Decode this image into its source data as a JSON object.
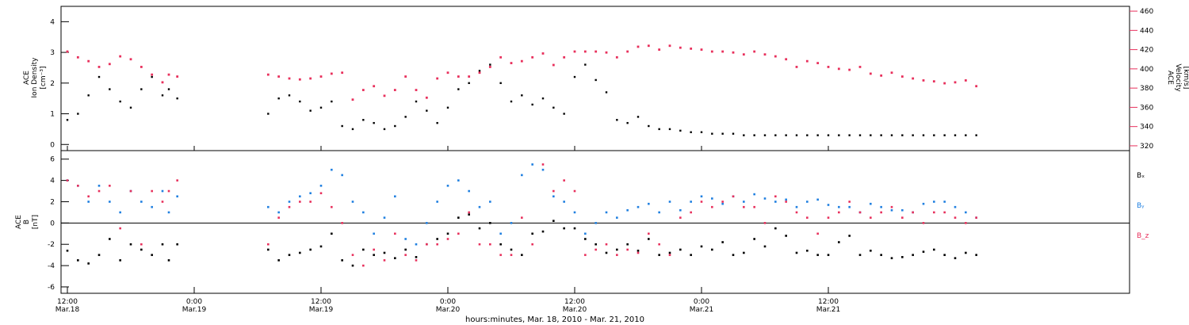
{
  "chart_data": [
    {
      "type": "scatter",
      "panel": "density-velocity",
      "ylabel": [
        "ACE",
        "Ion Density",
        "[cm⁻³]"
      ],
      "ylabel_right": [
        "ACE",
        "Velocity",
        "[km/s]"
      ],
      "ylim": [
        -0.2,
        4.5
      ],
      "yticks": [
        "0",
        "1",
        "2",
        "3",
        "4"
      ],
      "ylim_right": [
        315,
        465
      ],
      "yticks_right": [
        "320",
        "340",
        "360",
        "380",
        "400",
        "420",
        "440",
        "460"
      ],
      "colors": {
        "density": "#000000",
        "velocity": "#e8305c"
      },
      "series": [
        {
          "name": "Ion Density",
          "axis": "left",
          "x_hours": [
            0,
            1,
            2,
            3,
            4,
            5,
            6,
            7,
            8,
            9,
            9.6,
            10.4,
            19,
            20,
            21,
            22,
            23,
            24,
            25,
            26,
            27,
            28,
            29,
            30,
            31,
            32,
            33,
            34,
            35,
            36,
            37,
            38,
            39,
            40,
            41,
            42,
            43,
            44,
            45,
            46,
            47,
            48,
            49,
            50,
            51,
            52,
            53,
            54,
            55,
            56,
            57,
            58,
            59,
            60,
            61,
            62,
            63,
            64,
            65,
            66,
            67,
            68,
            69,
            70,
            71,
            72,
            73,
            74,
            75,
            76,
            77,
            78,
            79,
            80,
            81,
            82,
            83,
            84,
            85,
            86
          ],
          "values": [
            0.8,
            1.0,
            1.6,
            2.2,
            1.8,
            1.4,
            1.2,
            1.8,
            2.2,
            1.6,
            1.8,
            1.5,
            1.0,
            1.5,
            1.6,
            1.4,
            1.1,
            1.2,
            1.4,
            0.6,
            0.5,
            0.8,
            0.7,
            0.5,
            0.6,
            0.9,
            1.4,
            1.1,
            0.7,
            1.2,
            1.8,
            2.0,
            2.4,
            2.6,
            2.0,
            1.4,
            1.6,
            1.3,
            1.5,
            1.2,
            1.0,
            2.2,
            2.6,
            2.1,
            1.7,
            0.8,
            0.7,
            0.9,
            0.6,
            0.5,
            0.5,
            0.45,
            0.4,
            0.4,
            0.35,
            0.35,
            0.35,
            0.3,
            0.3,
            0.3,
            0.3,
            0.3,
            0.3,
            0.3,
            0.3,
            0.3,
            0.3,
            0.3,
            0.3,
            0.3,
            0.3,
            0.3,
            0.3,
            0.3,
            0.3,
            0.3,
            0.3,
            0.3,
            0.3,
            0.3
          ]
        },
        {
          "name": "Velocity",
          "axis": "right",
          "x_hours": [
            0,
            1,
            2,
            3,
            4,
            5,
            6,
            7,
            8,
            9,
            9.6,
            10.4,
            19,
            20,
            21,
            22,
            23,
            24,
            25,
            26,
            27,
            28,
            29,
            30,
            31,
            32,
            33,
            34,
            35,
            36,
            37,
            38,
            39,
            40,
            41,
            42,
            43,
            44,
            45,
            46,
            47,
            48,
            49,
            50,
            51,
            52,
            53,
            54,
            55,
            56,
            57,
            58,
            59,
            60,
            61,
            62,
            63,
            64,
            65,
            66,
            67,
            68,
            69,
            70,
            71,
            72,
            73,
            74,
            75,
            76,
            77,
            78,
            79,
            80,
            81,
            82,
            83,
            84,
            85,
            86
          ],
          "values": [
            418,
            412,
            408,
            402,
            405,
            413,
            410,
            402,
            394,
            386,
            394,
            392,
            394,
            392,
            390,
            389,
            390,
            392,
            395,
            396,
            368,
            378,
            382,
            372,
            378,
            392,
            378,
            370,
            390,
            396,
            392,
            392,
            396,
            402,
            412,
            406,
            408,
            412,
            416,
            404,
            412,
            418,
            418,
            418,
            417,
            412,
            418,
            423,
            424,
            420,
            424,
            422,
            421,
            420,
            418,
            418,
            417,
            415,
            418,
            415,
            413,
            410,
            402,
            408,
            406,
            402,
            400,
            399,
            402,
            395,
            393,
            396,
            392,
            390,
            388,
            387,
            385,
            386,
            388,
            382
          ]
        }
      ]
    },
    {
      "type": "scatter",
      "panel": "imf",
      "ylabel": [
        "ACE",
        "B",
        "[nT]"
      ],
      "ylim": [
        -6.6,
        6.8
      ],
      "yticks": [
        "-6",
        "-4",
        "-2",
        "0",
        "2",
        "4",
        "6"
      ],
      "legend": [
        "Bₓ",
        "Bᵧ",
        "B_z"
      ],
      "legend_position": "right",
      "colors": {
        "Bx": "#000000",
        "By": "#2080e0",
        "Bz": "#e8305c"
      },
      "series": [
        {
          "name": "Bx",
          "x_hours": [
            0,
            1,
            2,
            3,
            4,
            5,
            6,
            7,
            8,
            9,
            9.6,
            10.4,
            19,
            20,
            21,
            22,
            23,
            24,
            25,
            26,
            27,
            28,
            29,
            30,
            31,
            32,
            33,
            34,
            35,
            36,
            37,
            38,
            39,
            40,
            41,
            42,
            43,
            44,
            45,
            46,
            47,
            48,
            49,
            50,
            51,
            52,
            53,
            54,
            55,
            56,
            57,
            58,
            59,
            60,
            61,
            62,
            63,
            64,
            65,
            66,
            67,
            68,
            69,
            70,
            71,
            72,
            73,
            74,
            75,
            76,
            77,
            78,
            79,
            80,
            81,
            82,
            83,
            84,
            85,
            86
          ],
          "values": [
            -2.6,
            -3.5,
            -3.8,
            -3.0,
            -1.5,
            -3.5,
            -2.0,
            -2.5,
            -3.0,
            -2.0,
            -3.5,
            -2.0,
            -2.5,
            -3.5,
            -3.0,
            -2.8,
            -2.5,
            -2.2,
            -1.0,
            -3.5,
            -4.0,
            -2.5,
            -3.0,
            -2.8,
            -3.3,
            -2.5,
            -3.2,
            -2.0,
            -1.5,
            -1.0,
            0.5,
            0.8,
            -0.5,
            0.0,
            -2.0,
            -2.5,
            -3.0,
            -1.0,
            -0.8,
            0.2,
            -0.5,
            -0.5,
            -1.5,
            -2.0,
            -2.8,
            -2.5,
            -2.0,
            -2.6,
            -1.5,
            -3.0,
            -2.8,
            -2.5,
            -3.0,
            -2.2,
            -2.5,
            -1.8,
            -3.0,
            -2.8,
            -1.5,
            -2.2,
            -0.5,
            -1.2,
            -2.8,
            -2.6,
            -3.0,
            -3.0,
            -1.8,
            -1.2,
            -3.0,
            -2.6,
            -3.0,
            -3.3,
            -3.2,
            -3.0,
            -2.7,
            -2.5,
            -3.0,
            -3.3,
            -2.8,
            -3.0
          ]
        },
        {
          "name": "By",
          "x_hours": [
            0,
            1,
            2,
            3,
            4,
            5,
            6,
            7,
            8,
            9,
            9.6,
            10.4,
            19,
            20,
            21,
            22,
            23,
            24,
            25,
            26,
            27,
            28,
            29,
            30,
            31,
            32,
            33,
            34,
            35,
            36,
            37,
            38,
            39,
            40,
            41,
            42,
            43,
            44,
            45,
            46,
            47,
            48,
            49,
            50,
            51,
            52,
            53,
            54,
            55,
            56,
            57,
            58,
            59,
            60,
            61,
            62,
            63,
            64,
            65,
            66,
            67,
            68,
            69,
            70,
            71,
            72,
            73,
            74,
            75,
            76,
            77,
            78,
            79,
            80,
            81,
            82,
            83,
            84,
            85,
            86
          ],
          "values": [
            4.0,
            3.5,
            2.0,
            3.5,
            2.0,
            1.0,
            3.0,
            2.0,
            1.5,
            3.0,
            1.0,
            2.5,
            1.5,
            1.0,
            2.0,
            2.5,
            2.8,
            3.5,
            5.0,
            4.5,
            2.0,
            1.0,
            -1.0,
            0.5,
            2.5,
            -1.5,
            -2.0,
            0.0,
            2.0,
            3.5,
            4.0,
            3.0,
            1.5,
            2.0,
            -1.0,
            0.0,
            4.5,
            5.5,
            5.0,
            2.5,
            2.0,
            1.0,
            -1.0,
            0.0,
            1.0,
            0.5,
            1.2,
            1.5,
            1.8,
            1.0,
            2.0,
            1.2,
            2.0,
            2.5,
            2.3,
            1.8,
            2.5,
            2.0,
            2.7,
            2.3,
            2.0,
            2.2,
            1.5,
            2.0,
            2.2,
            1.7,
            1.5,
            1.5,
            1.0,
            1.8,
            1.5,
            1.2,
            1.2,
            1.0,
            1.8,
            2.0,
            2.0,
            1.5,
            1.0,
            0.5
          ]
        },
        {
          "name": "Bz",
          "x_hours": [
            0,
            1,
            2,
            3,
            4,
            5,
            6,
            7,
            8,
            9,
            9.6,
            10.4,
            19,
            20,
            21,
            22,
            23,
            24,
            25,
            26,
            27,
            28,
            29,
            30,
            31,
            32,
            33,
            34,
            35,
            36,
            37,
            38,
            39,
            40,
            41,
            42,
            43,
            44,
            45,
            46,
            47,
            48,
            49,
            50,
            51,
            52,
            53,
            54,
            55,
            56,
            57,
            58,
            59,
            60,
            61,
            62,
            63,
            64,
            65,
            66,
            67,
            68,
            69,
            70,
            71,
            72,
            73,
            74,
            75,
            76,
            77,
            78,
            79,
            80,
            81,
            82,
            83,
            84,
            85,
            86
          ],
          "values": [
            4.0,
            3.5,
            2.5,
            3.0,
            3.5,
            -0.5,
            3.0,
            -2.0,
            3.0,
            2.0,
            3.0,
            4.0,
            -2.0,
            0.5,
            1.5,
            2.0,
            2.0,
            2.8,
            1.5,
            0.0,
            -3.0,
            -4.0,
            -2.5,
            -3.5,
            -1.0,
            -3.0,
            -3.5,
            -2.0,
            -2.0,
            -1.5,
            -1.0,
            1.0,
            -2.0,
            -2.0,
            -3.0,
            -3.0,
            0.5,
            -2.0,
            5.5,
            3.0,
            4.0,
            3.0,
            -3.0,
            -2.5,
            -2.0,
            -3.0,
            -2.5,
            -2.8,
            -1.0,
            -2.0,
            -3.0,
            0.5,
            1.0,
            2.0,
            1.5,
            2.0,
            2.5,
            1.5,
            1.5,
            0.0,
            2.5,
            2.0,
            1.0,
            0.5,
            -1.0,
            0.5,
            1.0,
            2.0,
            1.0,
            0.5,
            1.0,
            1.5,
            0.5,
            1.0,
            0.0,
            1.0,
            1.0,
            0.5,
            0.0,
            0.5
          ]
        }
      ]
    }
  ],
  "x_axis": {
    "xlabel": "hours:minutes, Mar. 18, 2010 - Mar. 21, 2010",
    "xlim_hours": [
      -0.6,
      100.5
    ],
    "ticks": [
      {
        "hours": 0,
        "time": "12:00",
        "date": "Mar.18"
      },
      {
        "hours": 12,
        "time": "0:00",
        "date": "Mar.19"
      },
      {
        "hours": 24,
        "time": "12:00",
        "date": "Mar.19"
      },
      {
        "hours": 36,
        "time": "0:00",
        "date": "Mar.20"
      },
      {
        "hours": 48,
        "time": "12:00",
        "date": "Mar.20"
      },
      {
        "hours": 60,
        "time": "0:00",
        "date": "Mar.21"
      },
      {
        "hours": 72,
        "time": "12:00",
        "date": "Mar.21"
      }
    ]
  }
}
